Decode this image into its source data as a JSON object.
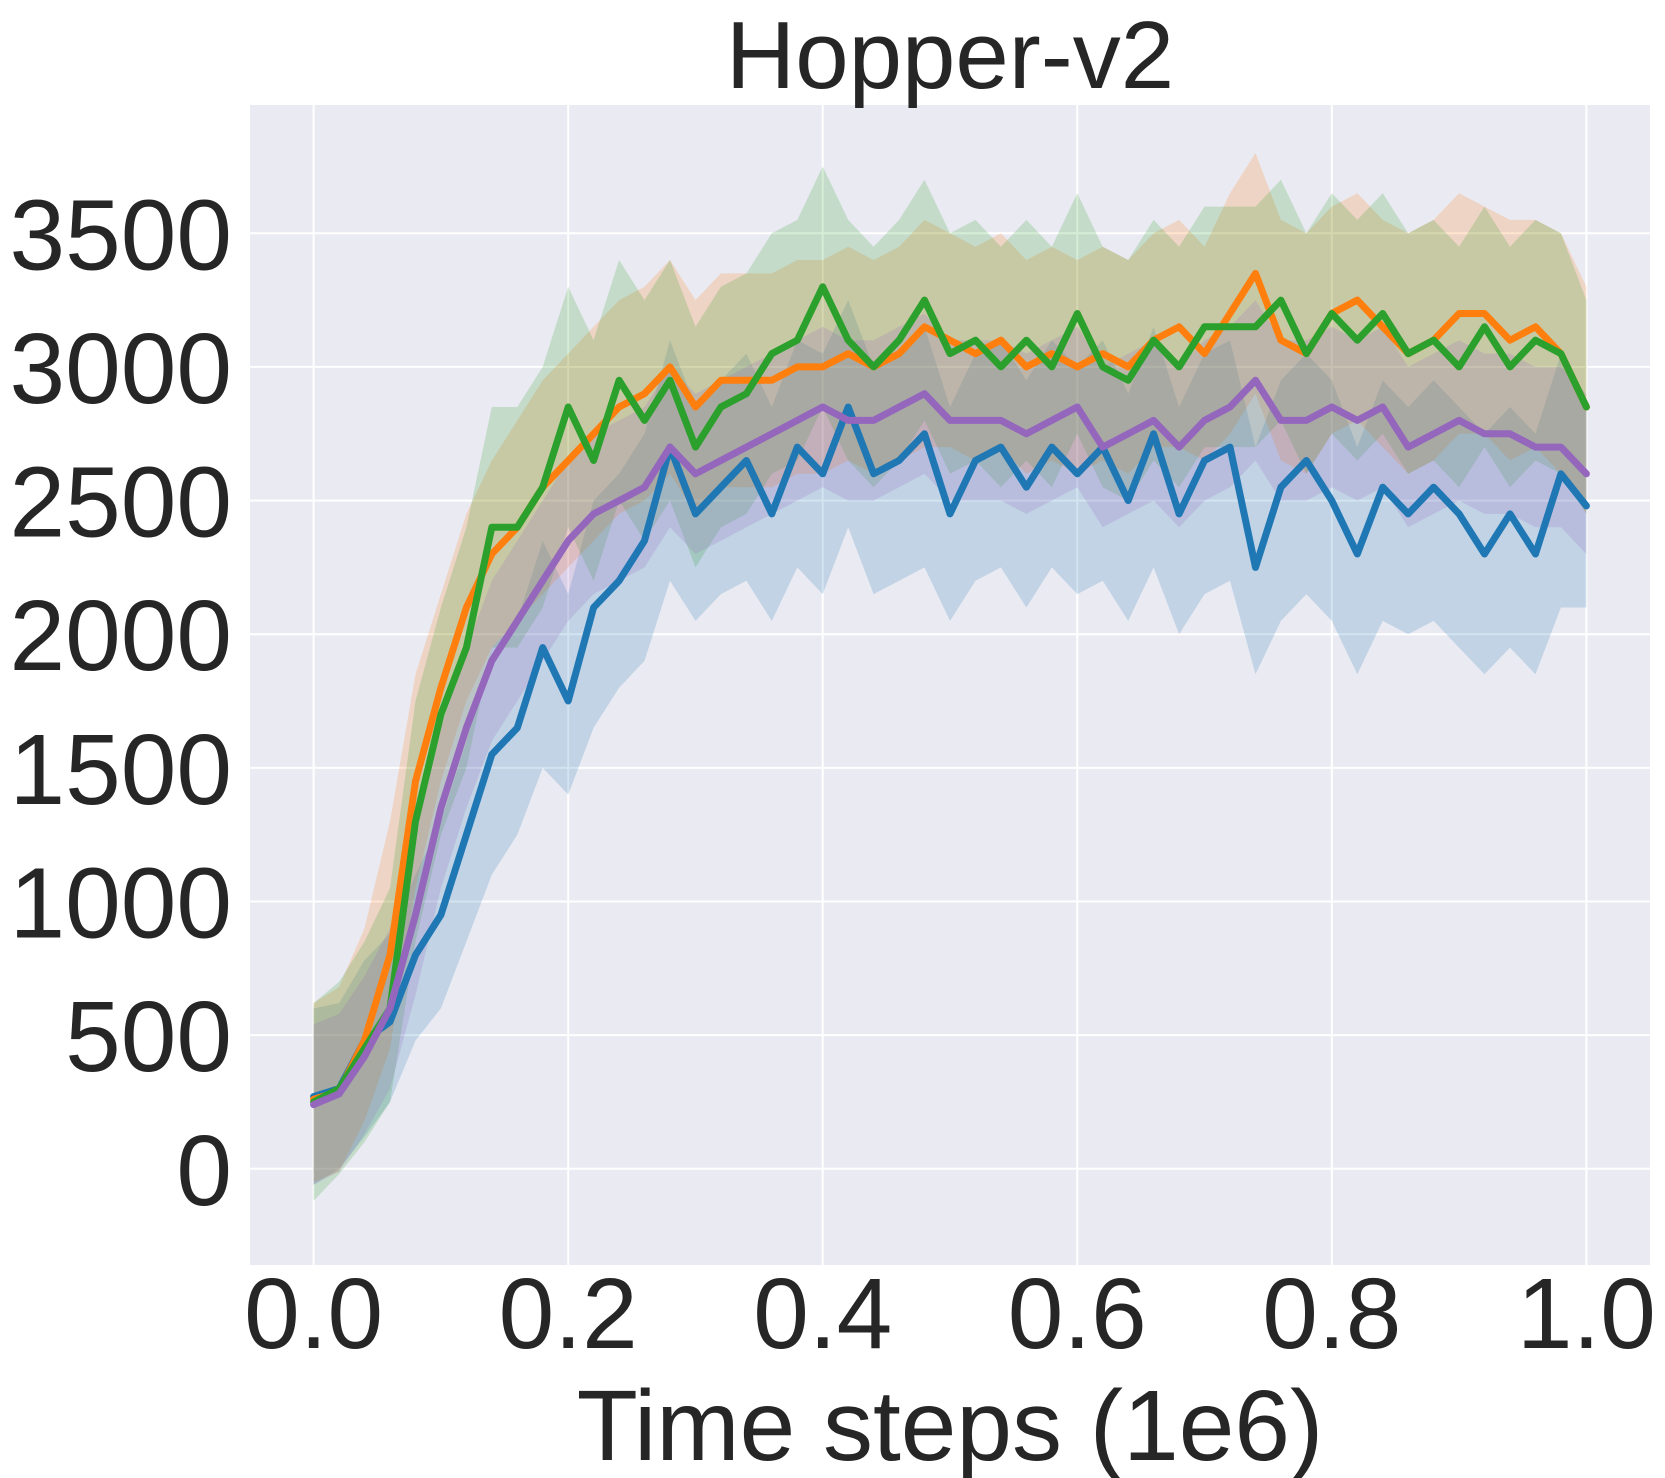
{
  "chart_data": {
    "type": "line",
    "title": "Hopper-v2",
    "xlabel": "Time steps (1e6)",
    "ylabel": "",
    "xlim": [
      -0.05,
      1.05
    ],
    "ylim": [
      -360,
      3980
    ],
    "xticks": [
      0.0,
      0.2,
      0.4,
      0.6,
      0.8,
      1.0
    ],
    "xtick_labels": [
      "0.0",
      "0.2",
      "0.4",
      "0.6",
      "0.8",
      "1.0"
    ],
    "yticks": [
      0,
      500,
      1000,
      1500,
      2000,
      2500,
      3000,
      3500
    ],
    "ytick_labels": [
      "0",
      "500",
      "1000",
      "1500",
      "2000",
      "2500",
      "3000",
      "3500"
    ],
    "grid": true,
    "background": "#eaeaf2",
    "series": [
      {
        "color": "#1f77b4",
        "x": [
          0.0,
          0.02,
          0.04,
          0.06,
          0.08,
          0.1,
          0.12,
          0.14,
          0.16,
          0.18,
          0.2,
          0.22,
          0.24,
          0.26,
          0.28,
          0.3,
          0.32,
          0.34,
          0.36,
          0.38,
          0.4,
          0.42,
          0.44,
          0.46,
          0.48,
          0.5,
          0.52,
          0.54,
          0.56,
          0.58,
          0.6,
          0.62,
          0.64,
          0.66,
          0.68,
          0.7,
          0.72,
          0.74,
          0.76,
          0.78,
          0.8,
          0.82,
          0.84,
          0.86,
          0.88,
          0.9,
          0.92,
          0.94,
          0.96,
          0.98,
          1.0
        ],
        "y": [
          270,
          300,
          480,
          550,
          800,
          950,
          1250,
          1550,
          1650,
          1950,
          1750,
          2100,
          2200,
          2350,
          2700,
          2450,
          2550,
          2650,
          2450,
          2700,
          2600,
          2850,
          2600,
          2650,
          2750,
          2450,
          2650,
          2700,
          2550,
          2700,
          2600,
          2700,
          2500,
          2750,
          2450,
          2650,
          2700,
          2250,
          2550,
          2650,
          2500,
          2300,
          2550,
          2450,
          2550,
          2450,
          2300,
          2450,
          2300,
          2600,
          2480
        ],
        "lower": [
          -60,
          0,
          120,
          250,
          480,
          600,
          850,
          1100,
          1250,
          1500,
          1400,
          1650,
          1800,
          1900,
          2200,
          2050,
          2150,
          2200,
          2050,
          2250,
          2150,
          2400,
          2150,
          2200,
          2250,
          2050,
          2200,
          2250,
          2100,
          2250,
          2150,
          2200,
          2050,
          2250,
          2000,
          2150,
          2200,
          1850,
          2050,
          2150,
          2050,
          1850,
          2050,
          2000,
          2050,
          1950,
          1850,
          1950,
          1850,
          2100,
          2100
        ],
        "upper": [
          600,
          620,
          780,
          880,
          1100,
          1300,
          1600,
          1950,
          2050,
          2350,
          2150,
          2500,
          2600,
          2750,
          3100,
          2850,
          2950,
          3050,
          2850,
          3100,
          3050,
          3250,
          3000,
          3050,
          3150,
          2850,
          3050,
          3100,
          2950,
          3100,
          3000,
          3100,
          2900,
          3150,
          2850,
          3050,
          3100,
          2700,
          2950,
          3050,
          2950,
          2700,
          2950,
          2850,
          2950,
          2850,
          2750,
          2850,
          2750,
          3050,
          2880
        ]
      },
      {
        "color": "#ff7f0e",
        "x": [
          0.0,
          0.02,
          0.04,
          0.06,
          0.08,
          0.1,
          0.12,
          0.14,
          0.16,
          0.18,
          0.2,
          0.22,
          0.24,
          0.26,
          0.28,
          0.3,
          0.32,
          0.34,
          0.36,
          0.38,
          0.4,
          0.42,
          0.44,
          0.46,
          0.48,
          0.5,
          0.52,
          0.54,
          0.56,
          0.58,
          0.6,
          0.62,
          0.64,
          0.66,
          0.68,
          0.7,
          0.72,
          0.74,
          0.76,
          0.78,
          0.8,
          0.82,
          0.84,
          0.86,
          0.88,
          0.9,
          0.92,
          0.94,
          0.96,
          0.98,
          1.0
        ],
        "y": [
          260,
          290,
          480,
          800,
          1450,
          1800,
          2100,
          2300,
          2400,
          2550,
          2650,
          2750,
          2850,
          2900,
          3000,
          2850,
          2950,
          2950,
          2950,
          3000,
          3000,
          3050,
          3000,
          3050,
          3150,
          3100,
          3050,
          3100,
          3000,
          3050,
          3000,
          3050,
          3000,
          3100,
          3150,
          3050,
          3200,
          3350,
          3100,
          3050,
          3200,
          3250,
          3150,
          3050,
          3100,
          3200,
          3200,
          3100,
          3150,
          3050,
          2850
        ],
        "lower": [
          -50,
          -10,
          180,
          450,
          1050,
          1450,
          1750,
          1950,
          2050,
          2150,
          2250,
          2350,
          2450,
          2500,
          2600,
          2450,
          2550,
          2550,
          2550,
          2600,
          2600,
          2650,
          2600,
          2650,
          2700,
          2700,
          2650,
          2700,
          2600,
          2650,
          2600,
          2650,
          2600,
          2700,
          2700,
          2650,
          2750,
          2900,
          2650,
          2600,
          2750,
          2800,
          2700,
          2600,
          2650,
          2750,
          2750,
          2650,
          2700,
          2600,
          2450
        ],
        "upper": [
          620,
          680,
          900,
          1300,
          1850,
          2150,
          2450,
          2650,
          2800,
          2950,
          3050,
          3150,
          3250,
          3300,
          3400,
          3250,
          3350,
          3350,
          3350,
          3400,
          3400,
          3450,
          3400,
          3450,
          3550,
          3500,
          3450,
          3500,
          3400,
          3450,
          3400,
          3450,
          3400,
          3500,
          3550,
          3450,
          3650,
          3800,
          3550,
          3500,
          3600,
          3650,
          3550,
          3500,
          3550,
          3650,
          3600,
          3550,
          3550,
          3500,
          3300
        ]
      },
      {
        "color": "#2ca02c",
        "x": [
          0.0,
          0.02,
          0.04,
          0.06,
          0.08,
          0.1,
          0.12,
          0.14,
          0.16,
          0.18,
          0.2,
          0.22,
          0.24,
          0.26,
          0.28,
          0.3,
          0.32,
          0.34,
          0.36,
          0.38,
          0.4,
          0.42,
          0.44,
          0.46,
          0.48,
          0.5,
          0.52,
          0.54,
          0.56,
          0.58,
          0.6,
          0.62,
          0.64,
          0.66,
          0.68,
          0.7,
          0.72,
          0.74,
          0.76,
          0.78,
          0.8,
          0.82,
          0.84,
          0.86,
          0.88,
          0.9,
          0.92,
          0.94,
          0.96,
          0.98,
          1.0
        ],
        "y": [
          250,
          300,
          450,
          600,
          1300,
          1700,
          1950,
          2400,
          2400,
          2550,
          2850,
          2650,
          2950,
          2800,
          2950,
          2700,
          2850,
          2900,
          3050,
          3100,
          3300,
          3100,
          3000,
          3100,
          3250,
          3050,
          3100,
          3000,
          3100,
          3000,
          3200,
          3000,
          2950,
          3100,
          3000,
          3150,
          3150,
          3150,
          3250,
          3050,
          3200,
          3100,
          3200,
          3050,
          3100,
          3000,
          3150,
          3000,
          3100,
          3050,
          2850
        ],
        "lower": [
          -120,
          -20,
          100,
          250,
          850,
          1250,
          1500,
          1950,
          1950,
          2100,
          2400,
          2200,
          2500,
          2350,
          2500,
          2250,
          2400,
          2450,
          2600,
          2650,
          2850,
          2650,
          2550,
          2650,
          2800,
          2600,
          2650,
          2550,
          2650,
          2550,
          2750,
          2550,
          2500,
          2650,
          2550,
          2700,
          2700,
          2700,
          2800,
          2600,
          2750,
          2650,
          2750,
          2600,
          2650,
          2550,
          2700,
          2550,
          2650,
          2600,
          2450
        ],
        "upper": [
          620,
          700,
          850,
          1050,
          1750,
          2100,
          2400,
          2850,
          2850,
          3000,
          3300,
          3100,
          3400,
          3250,
          3400,
          3150,
          3300,
          3350,
          3500,
          3550,
          3750,
          3550,
          3450,
          3550,
          3700,
          3500,
          3550,
          3450,
          3550,
          3450,
          3650,
          3450,
          3400,
          3550,
          3450,
          3600,
          3600,
          3600,
          3700,
          3500,
          3650,
          3550,
          3650,
          3500,
          3550,
          3450,
          3600,
          3450,
          3550,
          3500,
          3250
        ]
      },
      {
        "color": "#9467bd",
        "x": [
          0.0,
          0.02,
          0.04,
          0.06,
          0.08,
          0.1,
          0.12,
          0.14,
          0.16,
          0.18,
          0.2,
          0.22,
          0.24,
          0.26,
          0.28,
          0.3,
          0.32,
          0.34,
          0.36,
          0.38,
          0.4,
          0.42,
          0.44,
          0.46,
          0.48,
          0.5,
          0.52,
          0.54,
          0.56,
          0.58,
          0.6,
          0.62,
          0.64,
          0.66,
          0.68,
          0.7,
          0.72,
          0.74,
          0.76,
          0.78,
          0.8,
          0.82,
          0.84,
          0.86,
          0.88,
          0.9,
          0.92,
          0.94,
          0.96,
          0.98,
          1.0
        ],
        "y": [
          240,
          280,
          420,
          600,
          950,
          1350,
          1650,
          1900,
          2050,
          2200,
          2350,
          2450,
          2500,
          2550,
          2700,
          2600,
          2650,
          2700,
          2750,
          2800,
          2850,
          2800,
          2800,
          2850,
          2900,
          2800,
          2800,
          2800,
          2750,
          2800,
          2850,
          2700,
          2750,
          2800,
          2700,
          2800,
          2850,
          2950,
          2800,
          2800,
          2850,
          2800,
          2850,
          2700,
          2750,
          2800,
          2750,
          2750,
          2700,
          2700,
          2600
        ],
        "lower": [
          -60,
          -10,
          130,
          300,
          650,
          1050,
          1350,
          1600,
          1750,
          1900,
          2050,
          2150,
          2200,
          2250,
          2400,
          2300,
          2350,
          2400,
          2450,
          2500,
          2550,
          2500,
          2500,
          2550,
          2600,
          2500,
          2500,
          2500,
          2450,
          2500,
          2550,
          2400,
          2450,
          2500,
          2400,
          2500,
          2550,
          2650,
          2500,
          2500,
          2550,
          2500,
          2550,
          2400,
          2450,
          2500,
          2450,
          2450,
          2400,
          2400,
          2300
        ],
        "upper": [
          540,
          580,
          720,
          900,
          1250,
          1650,
          1950,
          2200,
          2350,
          2500,
          2650,
          2750,
          2800,
          2850,
          3000,
          2900,
          2950,
          3000,
          3050,
          3100,
          3150,
          3100,
          3100,
          3150,
          3200,
          3100,
          3100,
          3100,
          3050,
          3100,
          3150,
          3000,
          3050,
          3100,
          3000,
          3100,
          3150,
          3250,
          3100,
          3100,
          3150,
          3100,
          3150,
          3000,
          3050,
          3100,
          3050,
          3050,
          3000,
          3000,
          2900
        ]
      }
    ]
  }
}
